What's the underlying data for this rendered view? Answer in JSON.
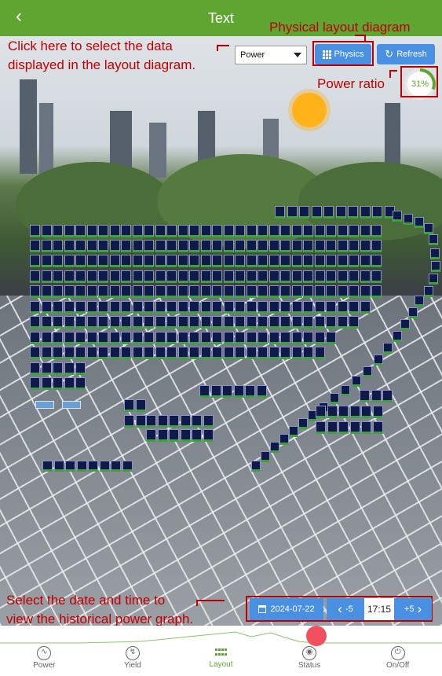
{
  "header": {
    "title": "Text",
    "back_icon": "chevron-left-icon"
  },
  "controls": {
    "data_select_value": "Power",
    "physics_label": "Physics",
    "refresh_label": "Refresh",
    "power_ratio": "31%"
  },
  "annotations": {
    "physical_layout": "Physical layout diagram",
    "select_data_line1": "Click here to select the data",
    "select_data_line2": "displayed in the layout diagram.",
    "power_ratio": "Power ratio",
    "history_line1": "Select the date and time to",
    "history_line2": "view the historical power graph."
  },
  "timebar": {
    "date": "2024-07-22",
    "prev_label": "-5",
    "time": "17:15",
    "next_label": "+5"
  },
  "nav": {
    "items": [
      {
        "label": "Power"
      },
      {
        "label": "Yield"
      },
      {
        "label": "Layout"
      },
      {
        "label": "Status"
      },
      {
        "label": "On/Off"
      }
    ],
    "active": "Layout"
  },
  "colors": {
    "brand_green": "#5fa532",
    "button_blue": "#4a90e2",
    "annotation_red": "#c00000",
    "panel_navy": "#0f1a4a",
    "slider_knob": "#f0505f"
  }
}
